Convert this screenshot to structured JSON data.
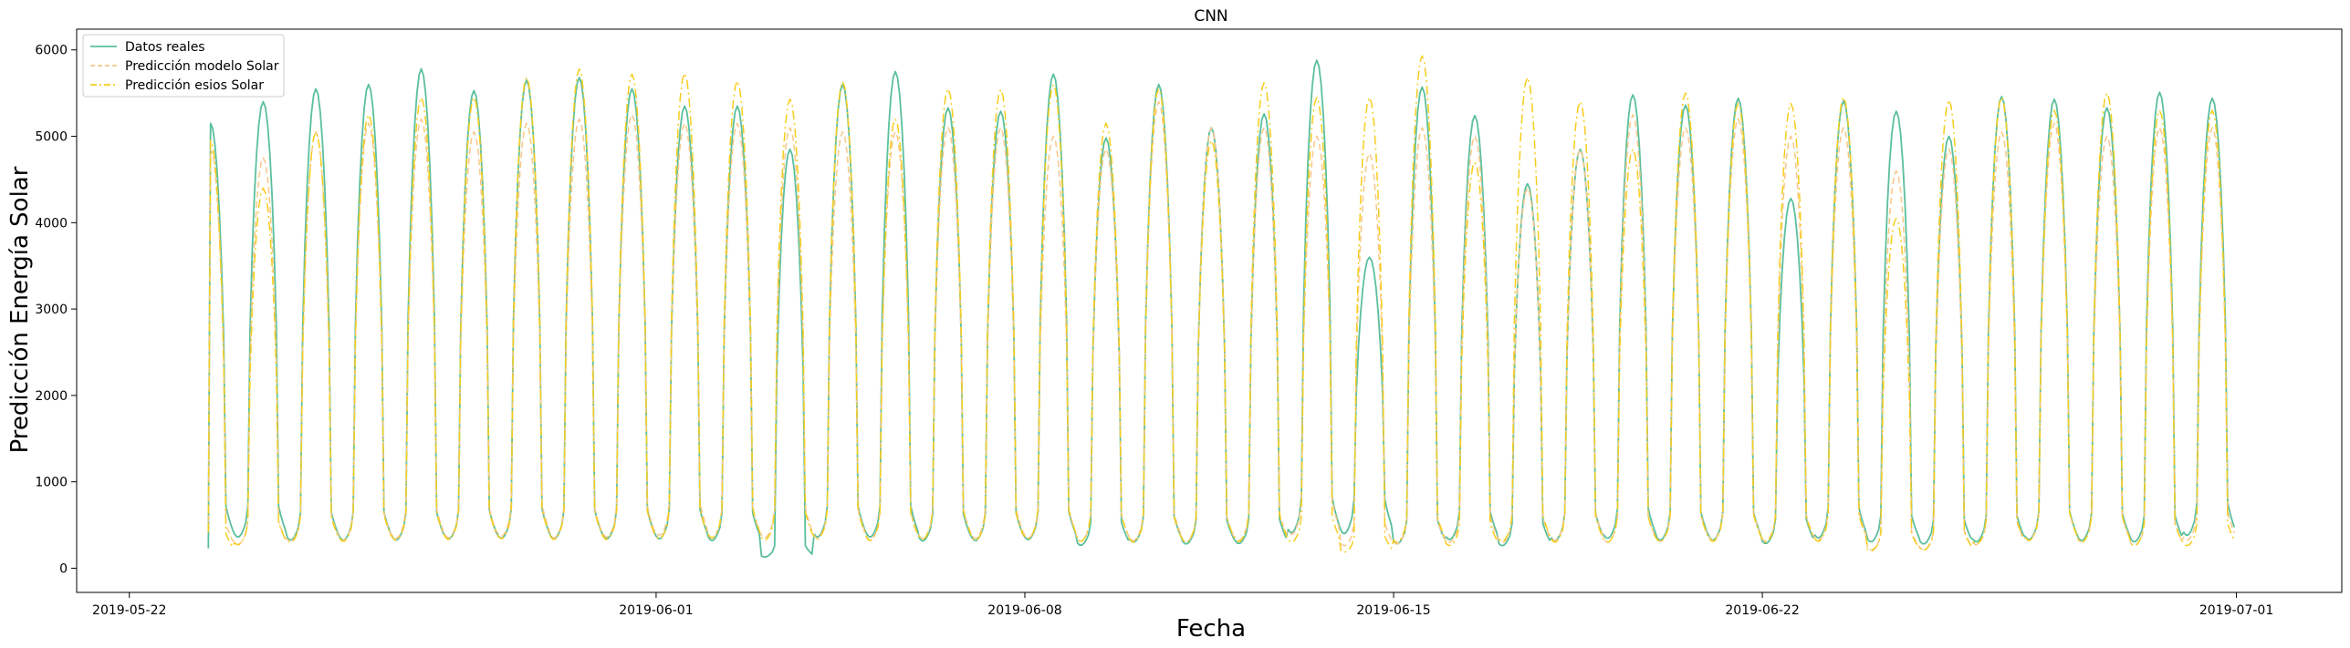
{
  "chart_data": {
    "type": "line",
    "title": "CNN",
    "xlabel": "Fecha",
    "ylabel": "Predicción Energía Solar",
    "x_start": "2019-05-23T12:00",
    "x_step_hours": 1,
    "xlim": [
      "2019-05-21T00:00",
      "2019-07-03T00:00"
    ],
    "ylim": [
      -280,
      6240
    ],
    "x_ticks": [
      {
        "date": "2019-05-22",
        "label": "2019-05-22"
      },
      {
        "date": "2019-06-01",
        "label": "2019-06-01"
      },
      {
        "date": "2019-06-08",
        "label": "2019-06-08"
      },
      {
        "date": "2019-06-15",
        "label": "2019-06-15"
      },
      {
        "date": "2019-06-22",
        "label": "2019-06-22"
      },
      {
        "date": "2019-07-01",
        "label": "2019-07-01"
      }
    ],
    "y_ticks": [
      0,
      1000,
      2000,
      3000,
      4000,
      5000,
      6000
    ],
    "grid": false,
    "legend_position": "top-left",
    "series_meta": [
      {
        "name": "Datos reales",
        "color": "#5bbf9d",
        "dash": "solid"
      },
      {
        "name": "Predicción modelo Solar",
        "color": "#f7c889",
        "dash": "dashed"
      },
      {
        "name": "Predicción esios Solar",
        "color": "#f7cd1e",
        "dash": "dashdot"
      }
    ],
    "daily_peaks": {
      "real": [
        5150,
        5400,
        5550,
        5600,
        5780,
        5530,
        5650,
        5680,
        5550,
        5350,
        5350,
        4850,
        5600,
        5750,
        5330,
        5290,
        5720,
        4980,
        5600,
        5100,
        5260,
        5880,
        3600,
        5570,
        5240,
        4450,
        4850,
        5480,
        5360,
        5440,
        4280,
        5410,
        5290,
        5000,
        5460,
        5430,
        5330,
        5510,
        5440
      ],
      "modelo": [
        4850,
        4750,
        5050,
        5150,
        5200,
        5050,
        5150,
        5200,
        5250,
        5150,
        5150,
        5100,
        5050,
        5050,
        5100,
        5100,
        5000,
        4850,
        5400,
        5100,
        5100,
        5000,
        4800,
        5100,
        5000,
        4400,
        4850,
        5250,
        5100,
        5200,
        5000,
        5100,
        4600,
        4850,
        5050,
        5150,
        5000,
        5100,
        5100
      ],
      "esios": [
        4950,
        4400,
        5050,
        5250,
        5450,
        5450,
        5680,
        5780,
        5720,
        5730,
        5640,
        5430,
        5630,
        5200,
        5550,
        5540,
        5600,
        5150,
        5550,
        4950,
        5620,
        5450,
        5450,
        5930,
        4700,
        5680,
        5400,
        4850,
        5500,
        5380,
        5380,
        5450,
        4050,
        5420,
        5450,
        5300,
        5500,
        5300,
        5300
      ]
    },
    "daily_nights": {
      "real": [
        720,
        720,
        650,
        650,
        650,
        680,
        690,
        680,
        680,
        680,
        640,
        260,
        720,
        720,
        630,
        640,
        660,
        530,
        600,
        560,
        570,
        820,
        800,
        560,
        660,
        520,
        640,
        690,
        650,
        650,
        570,
        700,
        610,
        560,
        610,
        660,
        640,
        610,
        760
      ],
      "modelo": [
        520,
        550,
        620,
        640,
        690,
        700,
        740,
        700,
        720,
        760,
        690,
        700,
        690,
        650,
        680,
        690,
        690,
        620,
        640,
        600,
        640,
        780,
        520,
        560,
        600,
        590,
        640,
        600,
        620,
        640,
        620,
        650,
        420,
        430,
        540,
        640,
        600,
        520,
        650
      ],
      "esios": [
        400,
        540,
        600,
        620,
        650,
        660,
        680,
        660,
        660,
        680,
        700,
        650,
        670,
        640,
        670,
        640,
        680,
        620,
        600,
        600,
        620,
        600,
        370,
        600,
        520,
        620,
        600,
        600,
        610,
        620,
        600,
        620,
        400,
        420,
        560,
        640,
        600,
        520,
        520
      ]
    },
    "series": [
      {
        "name": "Datos reales",
        "x": [],
        "y": []
      },
      {
        "name": "Predicción modelo Solar",
        "x": [],
        "y": []
      },
      {
        "name": "Predicción esios Solar",
        "x": [],
        "y": []
      }
    ]
  }
}
